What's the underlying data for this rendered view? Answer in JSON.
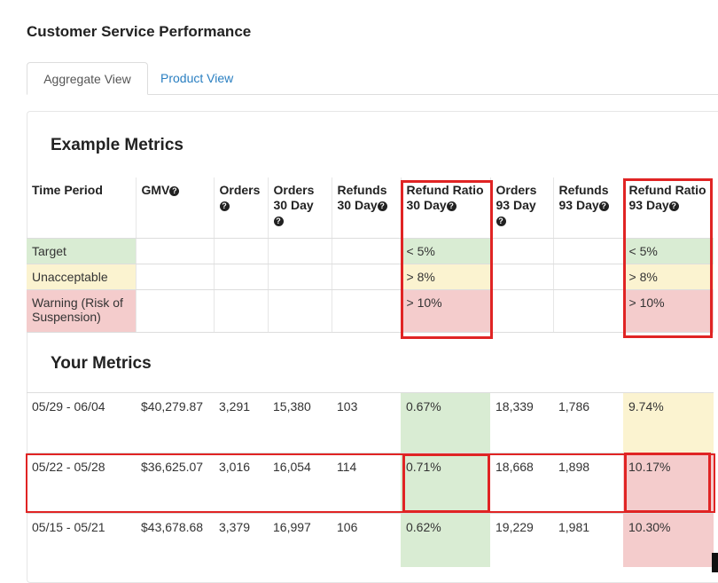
{
  "page": {
    "title": "Customer Service Performance"
  },
  "tabs": [
    {
      "label": "Aggregate View",
      "active": true
    },
    {
      "label": "Product View",
      "active": false
    }
  ],
  "example": {
    "title": "Example Metrics",
    "headers": [
      "Time Period",
      "GMV",
      "Orders",
      "Orders 30 Day",
      "Refunds 30 Day",
      "Refund Ratio 30 Day",
      "Orders 93 Day",
      "Refunds 93 Day",
      "Refund Ratio 93 Day"
    ],
    "info_icon": "question-circle-icon",
    "rows": [
      {
        "label": "Target",
        "ratio30": "< 5%",
        "ratio93": "< 5%",
        "color": "#d9ecd3"
      },
      {
        "label": "Unacceptable",
        "ratio30": "> 8%",
        "ratio93": "> 8%",
        "color": "#fbf3d0"
      },
      {
        "label": "Warning (Risk of Suspension)",
        "ratio30": "> 10%",
        "ratio93": "> 10%",
        "color": "#f4cccc"
      }
    ]
  },
  "yours": {
    "title": "Your Metrics",
    "rows": [
      {
        "period": "05/29 - 06/04",
        "gmv": "$40,279.87",
        "orders": "3,291",
        "orders30": "15,380",
        "refunds30": "103",
        "ratio30": "0.67%",
        "orders93": "18,339",
        "refunds93": "1,786",
        "ratio93": "9.74%"
      },
      {
        "period": "05/22 - 05/28",
        "gmv": "$36,625.07",
        "orders": "3,016",
        "orders30": "16,054",
        "refunds30": "114",
        "ratio30": "0.71%",
        "orders93": "18,668",
        "refunds93": "1,898",
        "ratio93": "10.17%"
      },
      {
        "period": "05/15 - 05/21",
        "gmv": "$43,678.68",
        "orders": "3,379",
        "orders30": "16,997",
        "refunds30": "106",
        "ratio30": "0.62%",
        "orders93": "19,229",
        "refunds93": "1,981",
        "ratio93": "10.30%"
      }
    ]
  },
  "colors": {
    "good": "#d9ecd3",
    "warn": "#fbf3d0",
    "bad": "#f4cccc",
    "highlight": "#e02424",
    "link": "#2a7fc1"
  }
}
